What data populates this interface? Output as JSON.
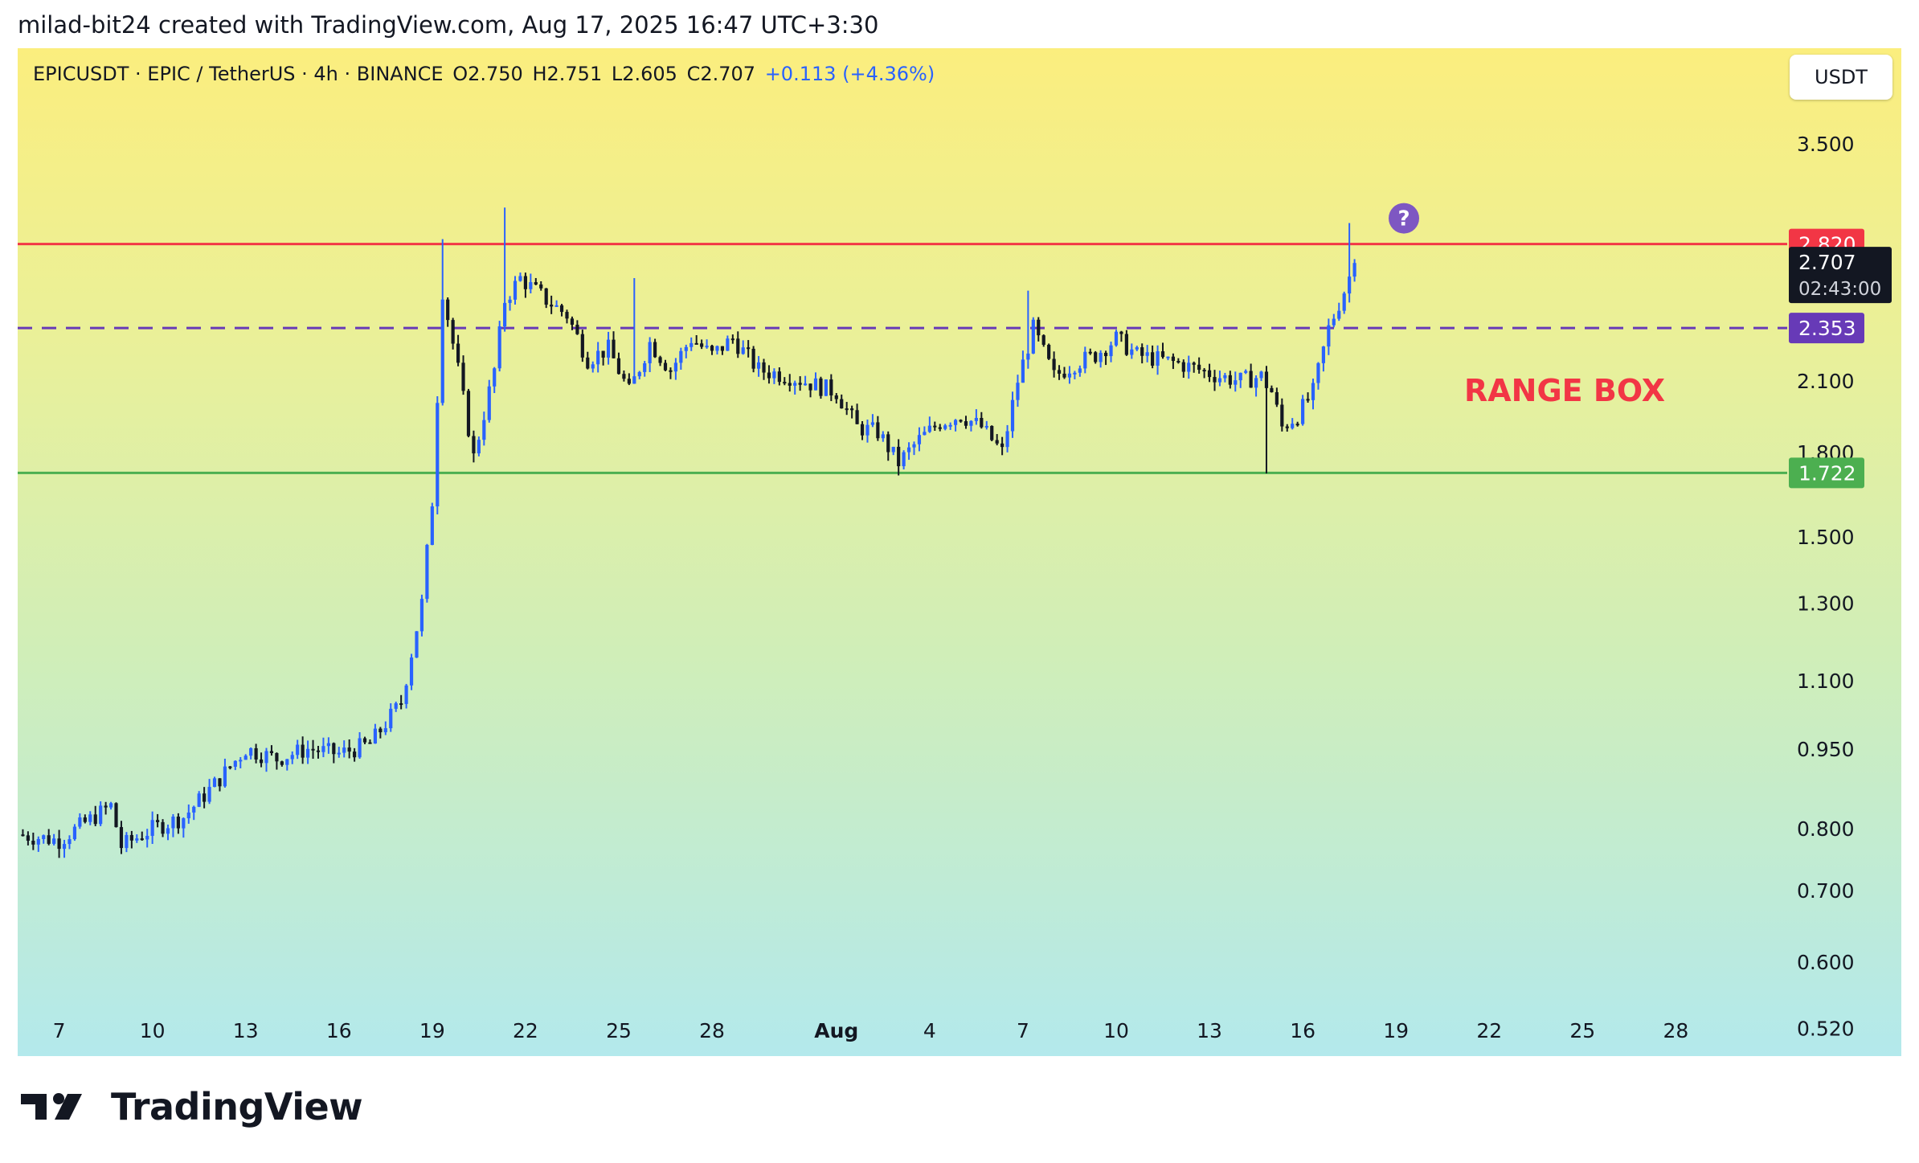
{
  "header": {
    "credit": "milad-bit24 created with TradingView.com, Aug 17, 2025 16:47 UTC+3:30"
  },
  "legend": {
    "symbol": "EPICUSDT · EPIC / TetherUS · 4h · BINANCE",
    "open": "O2.750",
    "high": "H2.751",
    "low": "L2.605",
    "close": "C2.707",
    "change": "+0.113 (+4.36%)"
  },
  "currency_button": "USDT",
  "annotation": {
    "range_box": "RANGE BOX",
    "question_icon": "question-circle-icon"
  },
  "logo": {
    "text": "TradingView",
    "icon": "tradingview-logo-icon"
  },
  "colors": {
    "up": "#2962ff",
    "down": "#131722",
    "resistance": "#f23645",
    "support": "#4caf50",
    "midline": "#673ab7",
    "range_text": "#f23645"
  },
  "chart_data": {
    "type": "candlestick",
    "title": "",
    "interval": "4h",
    "scale": "log",
    "y_axis_labels": [
      "3.500",
      "2.100",
      "1.800",
      "1.500",
      "1.300",
      "1.100",
      "0.950",
      "0.800",
      "0.700",
      "0.600",
      "0.520"
    ],
    "x_axis_labels": [
      "7",
      "10",
      "13",
      "16",
      "19",
      "22",
      "25",
      "28",
      "Aug",
      "4",
      "7",
      "10",
      "13",
      "16",
      "19",
      "22",
      "25",
      "28"
    ],
    "x_dates": [
      "2025-07-07",
      "2025-07-10",
      "2025-07-13",
      "2025-07-16",
      "2025-07-19",
      "2025-07-22",
      "2025-07-25",
      "2025-07-28",
      "2025-08-01",
      "2025-08-04",
      "2025-08-07",
      "2025-08-10",
      "2025-08-13",
      "2025-08-16",
      "2025-08-19",
      "2025-08-22",
      "2025-08-25",
      "2025-08-28"
    ],
    "x_range": [
      "2025-07-05T16:00",
      "2025-08-31T14:00"
    ],
    "ylim": [
      0.49,
      4.3
    ],
    "horizontal_lines": [
      {
        "value": 2.82,
        "label": "2.820",
        "style": "solid",
        "color": "#f23645"
      },
      {
        "value": 2.353,
        "label": "2.353",
        "style": "dashed",
        "color": "#673ab7"
      },
      {
        "value": 1.722,
        "label": "1.722",
        "style": "solid",
        "color": "#4caf50"
      }
    ],
    "last_price": {
      "value": 2.707,
      "label": "2.707",
      "countdown": "02:43:00"
    },
    "anchors": [
      [
        "2025-07-05T16:00",
        0.79
      ],
      [
        "2025-07-07T00:00",
        0.78
      ],
      [
        "2025-07-07T20:00",
        0.81
      ],
      [
        "2025-07-08T16:00",
        0.84
      ],
      [
        "2025-07-09T00:00",
        0.77
      ],
      [
        "2025-07-10T00:00",
        0.8
      ],
      [
        "2025-07-11T00:00",
        0.82
      ],
      [
        "2025-07-12T00:00",
        0.88
      ],
      [
        "2025-07-13T00:00",
        0.95
      ],
      [
        "2025-07-14T00:00",
        0.93
      ],
      [
        "2025-07-15T00:00",
        0.95
      ],
      [
        "2025-07-16T00:00",
        0.94
      ],
      [
        "2025-07-17T00:00",
        0.96
      ],
      [
        "2025-07-18T00:00",
        1.05
      ],
      [
        "2025-07-18T16:00",
        1.3
      ],
      [
        "2025-07-19T00:00",
        1.62
      ],
      [
        "2025-07-19T08:00",
        2.55
      ],
      [
        "2025-07-19T20:00",
        2.15
      ],
      [
        "2025-07-20T08:00",
        1.78
      ],
      [
        "2025-07-21T00:00",
        2.15
      ],
      [
        "2025-07-21T08:00",
        2.5
      ],
      [
        "2025-07-21T20:00",
        2.62
      ],
      [
        "2025-07-22T16:00",
        2.5
      ],
      [
        "2025-07-23T08:00",
        2.42
      ],
      [
        "2025-07-24T00:00",
        2.2
      ],
      [
        "2025-07-24T16:00",
        2.25
      ],
      [
        "2025-07-25T08:00",
        2.05
      ],
      [
        "2025-07-26T00:00",
        2.28
      ],
      [
        "2025-07-26T16:00",
        2.15
      ],
      [
        "2025-07-27T08:00",
        2.3
      ],
      [
        "2025-07-28T00:00",
        2.22
      ],
      [
        "2025-07-28T16:00",
        2.3
      ],
      [
        "2025-07-29T12:00",
        2.15
      ],
      [
        "2025-07-30T12:00",
        2.12
      ],
      [
        "2025-07-31T08:00",
        2.08
      ],
      [
        "2025-08-01T00:00",
        2.05
      ],
      [
        "2025-08-01T16:00",
        1.9
      ],
      [
        "2025-08-02T08:00",
        1.88
      ],
      [
        "2025-08-03T00:00",
        1.76
      ],
      [
        "2025-08-03T16:00",
        1.85
      ],
      [
        "2025-08-04T08:00",
        1.92
      ],
      [
        "2025-08-05T00:00",
        1.95
      ],
      [
        "2025-08-05T16:00",
        1.9
      ],
      [
        "2025-08-06T08:00",
        1.8
      ],
      [
        "2025-08-06T20:00",
        2.1
      ],
      [
        "2025-08-07T08:00",
        2.35
      ],
      [
        "2025-08-08T00:00",
        2.12
      ],
      [
        "2025-08-08T16:00",
        2.18
      ],
      [
        "2025-08-09T08:00",
        2.22
      ],
      [
        "2025-08-10T00:00",
        2.3
      ],
      [
        "2025-08-10T16:00",
        2.22
      ],
      [
        "2025-08-11T08:00",
        2.2
      ],
      [
        "2025-08-12T00:00",
        2.18
      ],
      [
        "2025-08-12T16:00",
        2.15
      ],
      [
        "2025-08-13T08:00",
        2.12
      ],
      [
        "2025-08-14T00:00",
        2.1
      ],
      [
        "2025-08-14T16:00",
        2.12
      ],
      [
        "2025-08-15T00:00",
        2.05
      ],
      [
        "2025-08-15T08:00",
        1.9
      ],
      [
        "2025-08-15T20:00",
        1.95
      ],
      [
        "2025-08-16T08:00",
        2.05
      ],
      [
        "2025-08-16T20:00",
        2.35
      ],
      [
        "2025-08-17T08:00",
        2.55
      ],
      [
        "2025-08-17T16:00",
        2.707
      ]
    ],
    "spikes": [
      {
        "date": "2025-07-21T08:00",
        "high": 3.05
      },
      {
        "date": "2025-07-19T08:00",
        "high": 2.85
      },
      {
        "date": "2025-07-25T12:00",
        "high": 2.62
      },
      {
        "date": "2025-08-07T04:00",
        "high": 2.55
      },
      {
        "date": "2025-08-14T20:00",
        "low": 1.72
      },
      {
        "date": "2025-08-17T12:00",
        "high": 2.95
      }
    ]
  }
}
